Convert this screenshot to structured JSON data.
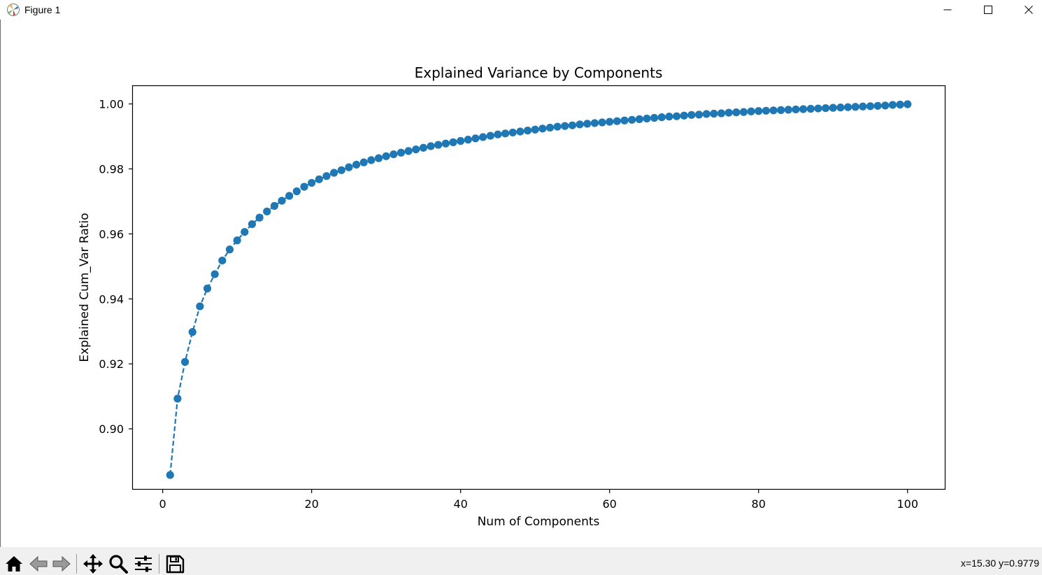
{
  "window": {
    "title": "Figure 1",
    "controls": [
      "minimize",
      "maximize",
      "close"
    ]
  },
  "toolbar": {
    "buttons": [
      {
        "icon": "home-icon"
      },
      {
        "icon": "back-arrow-icon"
      },
      {
        "icon": "forward-arrow-icon"
      },
      {
        "icon": "pan-icon"
      },
      {
        "icon": "zoom-icon"
      },
      {
        "icon": "configure-subplots-icon"
      },
      {
        "icon": "save-icon"
      }
    ],
    "coords": "x=15.30 y=0.9779"
  },
  "colors": {
    "series": "#1f77b4",
    "toolbar_bg": "#f0f0f0"
  },
  "chart_data": {
    "type": "line",
    "title": "Explained Variance by Components",
    "xlabel": "Num of Components",
    "ylabel": "Explained Cum_Var Ratio",
    "xlim": [
      -4,
      105
    ],
    "ylim": [
      0.8815,
      1.0055
    ],
    "xticks": [
      0,
      20,
      40,
      60,
      80,
      100
    ],
    "yticks": [
      0.9,
      0.92,
      0.94,
      0.96,
      0.98,
      1.0
    ],
    "xtick_labels": [
      "0",
      "20",
      "40",
      "60",
      "80",
      "100"
    ],
    "ytick_labels": [
      "0.90",
      "0.92",
      "0.94",
      "0.96",
      "0.98",
      "1.00"
    ],
    "line_style": "dashed",
    "marker": "circle",
    "grid": false,
    "x": [
      1,
      2,
      3,
      4,
      5,
      6,
      7,
      8,
      9,
      10,
      11,
      12,
      13,
      14,
      15,
      16,
      17,
      18,
      19,
      20,
      21,
      22,
      23,
      24,
      25,
      26,
      27,
      28,
      29,
      30,
      31,
      32,
      33,
      34,
      35,
      36,
      37,
      38,
      39,
      40,
      41,
      42,
      43,
      44,
      45,
      46,
      47,
      48,
      49,
      50,
      51,
      52,
      53,
      54,
      55,
      56,
      57,
      58,
      59,
      60,
      61,
      62,
      63,
      64,
      65,
      66,
      67,
      68,
      69,
      70,
      71,
      72,
      73,
      74,
      75,
      76,
      77,
      78,
      79,
      80,
      81,
      82,
      83,
      84,
      85,
      86,
      87,
      88,
      89,
      90,
      91,
      92,
      93,
      94,
      95,
      96,
      97,
      98,
      99,
      100
    ],
    "y": [
      0.8858,
      0.9093,
      0.9206,
      0.9298,
      0.9377,
      0.9432,
      0.9476,
      0.9518,
      0.9552,
      0.958,
      0.9606,
      0.963,
      0.965,
      0.9669,
      0.9686,
      0.9702,
      0.9717,
      0.9731,
      0.9745,
      0.9757,
      0.9768,
      0.9778,
      0.9788,
      0.9796,
      0.9805,
      0.9813,
      0.982,
      0.9827,
      0.9833,
      0.9839,
      0.9845,
      0.985,
      0.9855,
      0.986,
      0.9865,
      0.987,
      0.9874,
      0.9878,
      0.9882,
      0.9886,
      0.989,
      0.9894,
      0.9898,
      0.9902,
      0.9906,
      0.9909,
      0.9912,
      0.9915,
      0.9918,
      0.9921,
      0.9924,
      0.9927,
      0.993,
      0.9932,
      0.9934,
      0.9937,
      0.9939,
      0.9941,
      0.9943,
      0.9945,
      0.9947,
      0.9949,
      0.9951,
      0.9953,
      0.9955,
      0.9957,
      0.9959,
      0.9961,
      0.9962,
      0.9964,
      0.9966,
      0.9967,
      0.9969,
      0.997,
      0.9971,
      0.9973,
      0.9974,
      0.9975,
      0.9977,
      0.9978,
      0.9979,
      0.998,
      0.9981,
      0.9982,
      0.9983,
      0.9984,
      0.9985,
      0.9986,
      0.9987,
      0.9988,
      0.9989,
      0.999,
      0.9991,
      0.9992,
      0.9993,
      0.9994,
      0.9995,
      0.9997,
      0.9998,
      0.9999
    ]
  }
}
